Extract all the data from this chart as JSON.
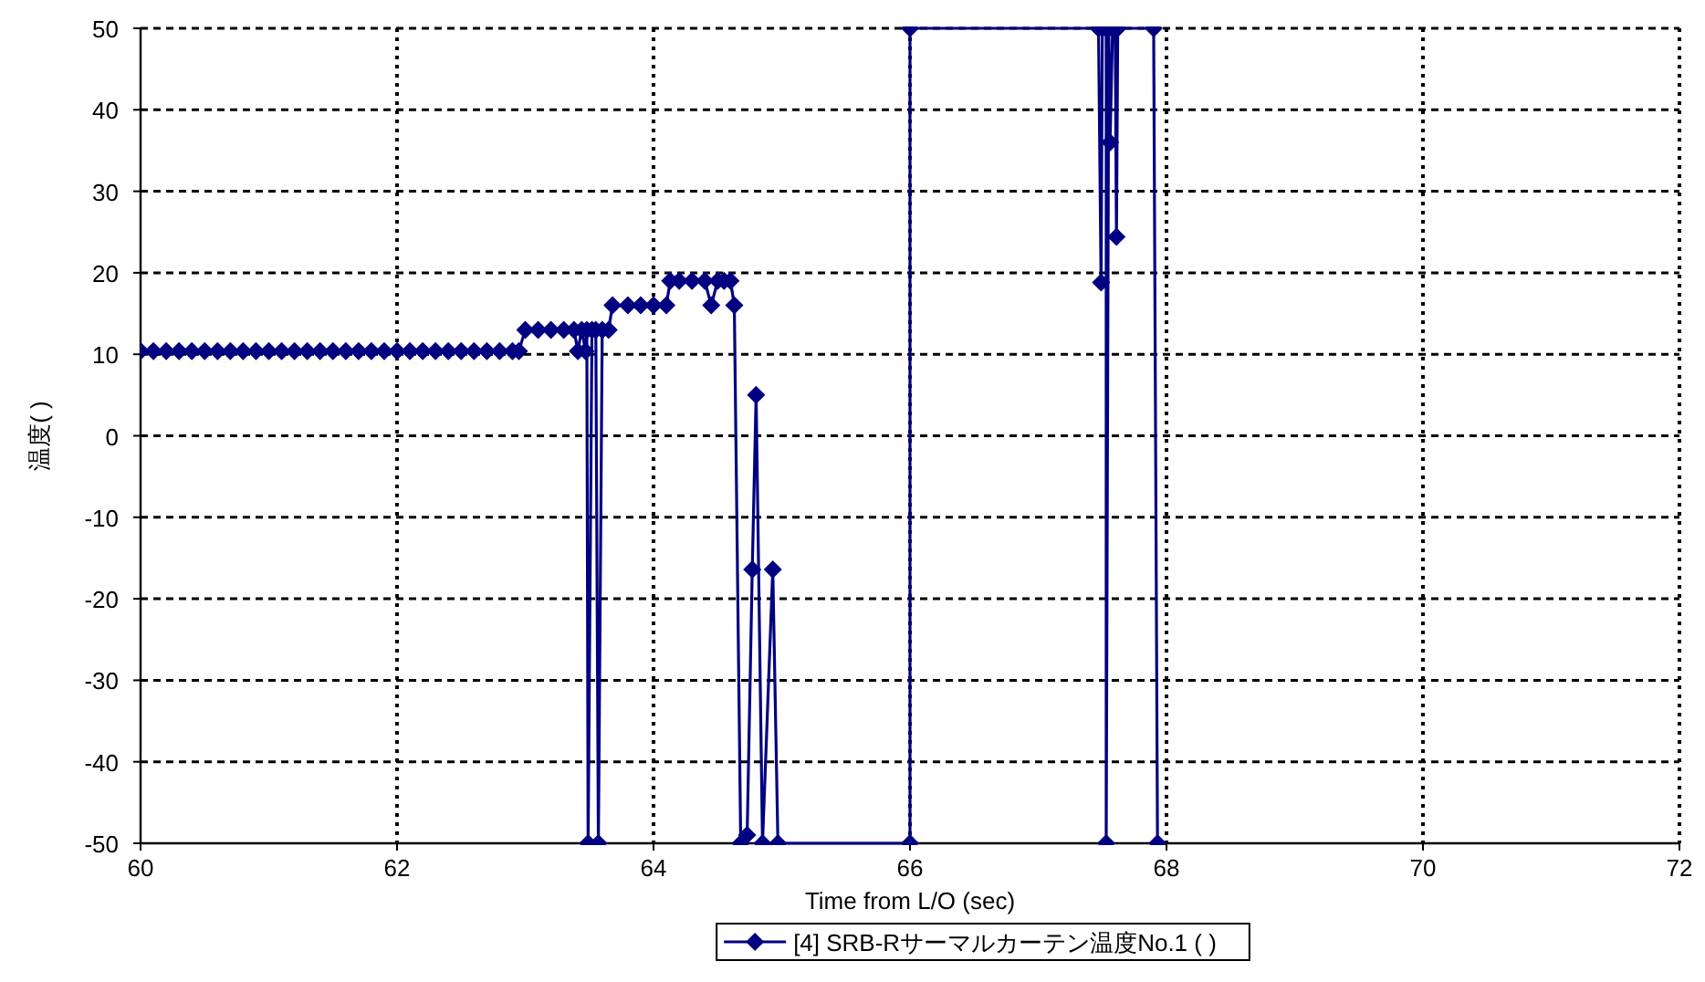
{
  "chart_data": {
    "type": "line",
    "xlabel": "Time from L/O (sec)",
    "ylabel": "温度( )",
    "xlim": [
      60,
      72
    ],
    "xticks": [
      60,
      62,
      64,
      66,
      68,
      70,
      72
    ],
    "ylim": [
      -50,
      50
    ],
    "yticks": [
      -50,
      -40,
      -30,
      -20,
      -10,
      0,
      10,
      20,
      30,
      40,
      50
    ],
    "grid": true,
    "legend": "bottom",
    "marker": "diamond",
    "line_style": "solid",
    "series": [
      {
        "name": "[4] SRB-Rサーマルカーテン温度No.1 ( )",
        "color": "#000080",
        "x": [
          60.0,
          60.1,
          60.2,
          60.3,
          60.4,
          60.5,
          60.6,
          60.7,
          60.8,
          60.9,
          61.0,
          61.1,
          61.2,
          61.3,
          61.4,
          61.5,
          61.6,
          61.7,
          61.8,
          61.9,
          62.0,
          62.1,
          62.2,
          62.3,
          62.4,
          62.5,
          62.6,
          62.7,
          62.8,
          62.9,
          62.95,
          63.0,
          63.1,
          63.2,
          63.3,
          63.38,
          63.41,
          63.44,
          63.47,
          63.48,
          63.49,
          63.52,
          63.55,
          63.57,
          63.6,
          63.65,
          63.68,
          63.8,
          63.9,
          64.0,
          64.1,
          64.13,
          64.2,
          64.3,
          64.4,
          64.45,
          64.5,
          64.55,
          64.6,
          64.63,
          64.68,
          64.73,
          64.77,
          64.8,
          64.85,
          64.93,
          64.97,
          66.0,
          66.0,
          67.47,
          67.49,
          67.5,
          67.53,
          67.53,
          67.55,
          67.56,
          67.58,
          67.6,
          67.61,
          67.62,
          67.9,
          67.93
        ],
        "values": [
          10.4,
          10.4,
          10.4,
          10.4,
          10.4,
          10.4,
          10.4,
          10.4,
          10.4,
          10.4,
          10.4,
          10.4,
          10.4,
          10.4,
          10.4,
          10.4,
          10.4,
          10.4,
          10.4,
          10.4,
          10.4,
          10.4,
          10.4,
          10.4,
          10.4,
          10.4,
          10.4,
          10.4,
          10.4,
          10.4,
          10.4,
          13,
          13,
          13,
          13,
          13,
          10.4,
          13,
          10.4,
          13,
          -50,
          13,
          13,
          -50,
          13,
          13,
          16,
          16,
          16,
          16,
          16,
          19,
          19,
          19,
          19,
          16,
          19,
          19,
          19,
          16,
          -50,
          -49,
          -16.4,
          5,
          -50,
          -16.4,
          -50,
          -50,
          50,
          50,
          18.8,
          50,
          50,
          -50,
          50,
          36,
          50,
          50,
          24.4,
          50,
          50,
          -50
        ]
      }
    ]
  }
}
